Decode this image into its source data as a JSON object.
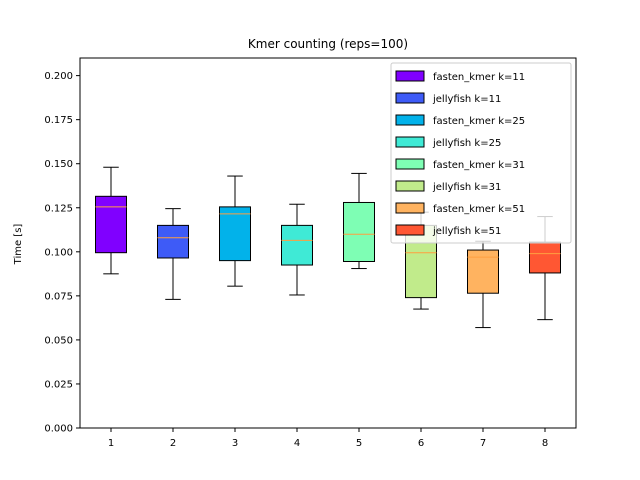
{
  "chart_data": {
    "type": "box",
    "title": "Kmer counting (reps=100)",
    "xlabel": "",
    "ylabel": "Time [s]",
    "ylim": [
      0,
      0.21
    ],
    "yticks": [
      0.0,
      0.025,
      0.05,
      0.075,
      0.1,
      0.125,
      0.15,
      0.175,
      0.2
    ],
    "ytick_labels": [
      "0.000",
      "0.025",
      "0.050",
      "0.075",
      "0.100",
      "0.125",
      "0.150",
      "0.175",
      "0.200"
    ],
    "categories": [
      "1",
      "2",
      "3",
      "4",
      "5",
      "6",
      "7",
      "8"
    ],
    "legend_position": "top-right",
    "series": [
      {
        "name": "fasten_kmer k=11",
        "color": "#8000ff",
        "whislo": 0.0875,
        "q1": 0.0995,
        "med": 0.1255,
        "q3": 0.1315,
        "whishi": 0.148
      },
      {
        "name": "jellyfish k=11",
        "color": "#3e5bf7",
        "whislo": 0.073,
        "q1": 0.0965,
        "med": 0.108,
        "q3": 0.115,
        "whishi": 0.1245
      },
      {
        "name": "fasten_kmer k=25",
        "color": "#02b2ea",
        "whislo": 0.0805,
        "q1": 0.095,
        "med": 0.1215,
        "q3": 0.1255,
        "whishi": 0.143
      },
      {
        "name": "jellyfish k=25",
        "color": "#3fead6",
        "whislo": 0.0755,
        "q1": 0.0925,
        "med": 0.1065,
        "q3": 0.115,
        "whishi": 0.127
      },
      {
        "name": "fasten_kmer k=31",
        "color": "#7efeb4",
        "whislo": 0.0905,
        "q1": 0.0945,
        "med": 0.11,
        "q3": 0.128,
        "whishi": 0.1445
      },
      {
        "name": "jellyfish k=31",
        "color": "#c1eb8b",
        "whislo": 0.0675,
        "q1": 0.074,
        "med": 0.0995,
        "q3": 0.115,
        "whishi": 0.1225
      },
      {
        "name": "fasten_kmer k=51",
        "color": "#ffb360",
        "whislo": 0.057,
        "q1": 0.0765,
        "med": 0.097,
        "q3": 0.101,
        "whishi": 0.106
      },
      {
        "name": "jellyfish k=51",
        "color": "#ff5733",
        "whislo": 0.0615,
        "q1": 0.088,
        "med": 0.099,
        "q3": 0.1055,
        "whishi": 0.12
      }
    ]
  }
}
